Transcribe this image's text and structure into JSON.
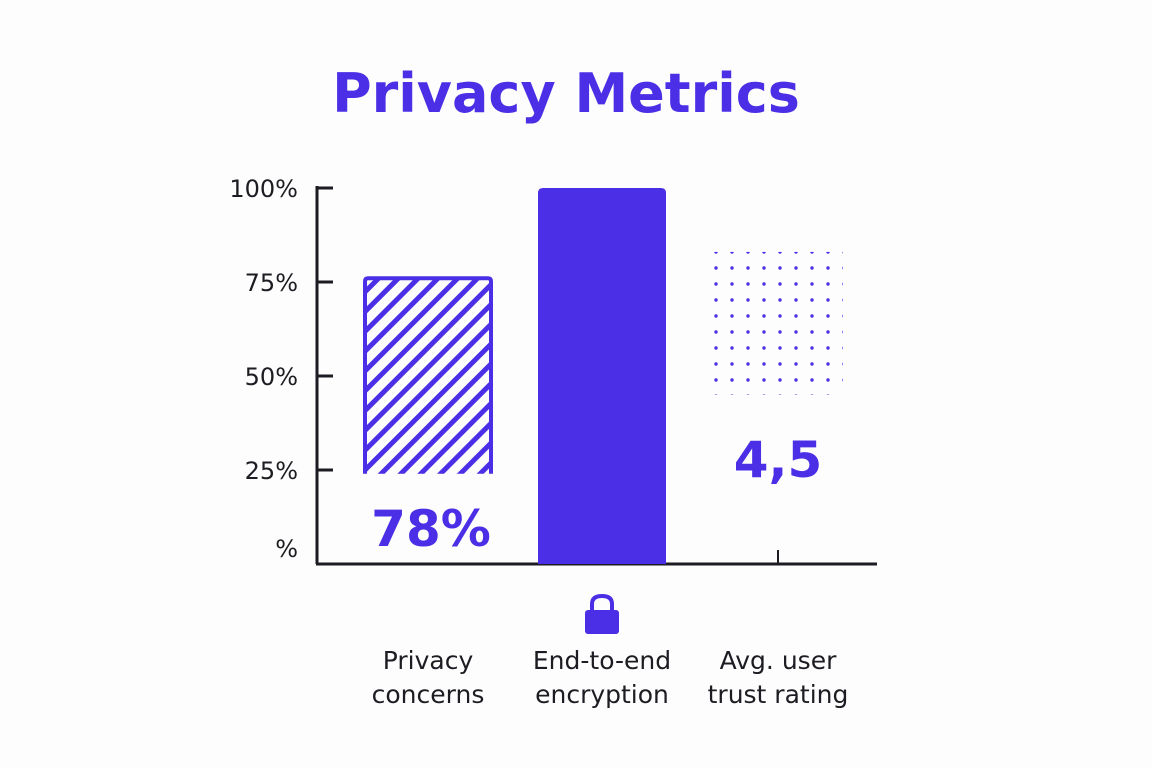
{
  "colors": {
    "accent": "#4a2fe6",
    "axis": "#1c1c22",
    "text": "#1c1c22",
    "background": "#fdfdfd"
  },
  "chart_data": {
    "type": "bar",
    "title": "Privacy Metrics",
    "ylim": [
      0,
      100
    ],
    "yticks": [
      {
        "value": 0,
        "label": "%"
      },
      {
        "value": 25,
        "label": "25%"
      },
      {
        "value": 50,
        "label": "50%"
      },
      {
        "value": 75,
        "label": "75%"
      },
      {
        "value": 100,
        "label": "100%"
      }
    ],
    "grid": false,
    "legend": "none",
    "bars": [
      {
        "category_lines": [
          "Privacy",
          "concerns"
        ],
        "value_top": 76,
        "value_bottom": 24,
        "value_label": "78%",
        "style": "hatched-outline",
        "icon": "none"
      },
      {
        "category_lines": [
          "End-to-end",
          "encryption"
        ],
        "value_top": 100,
        "value_bottom": 0,
        "value_label": "",
        "style": "solid",
        "icon": "lock-icon"
      },
      {
        "category_lines": [
          "Avg. user",
          "trust rating"
        ],
        "value_top": 83,
        "value_bottom": 45,
        "value_label": "4,5",
        "style": "dotted",
        "icon": "none"
      }
    ]
  }
}
